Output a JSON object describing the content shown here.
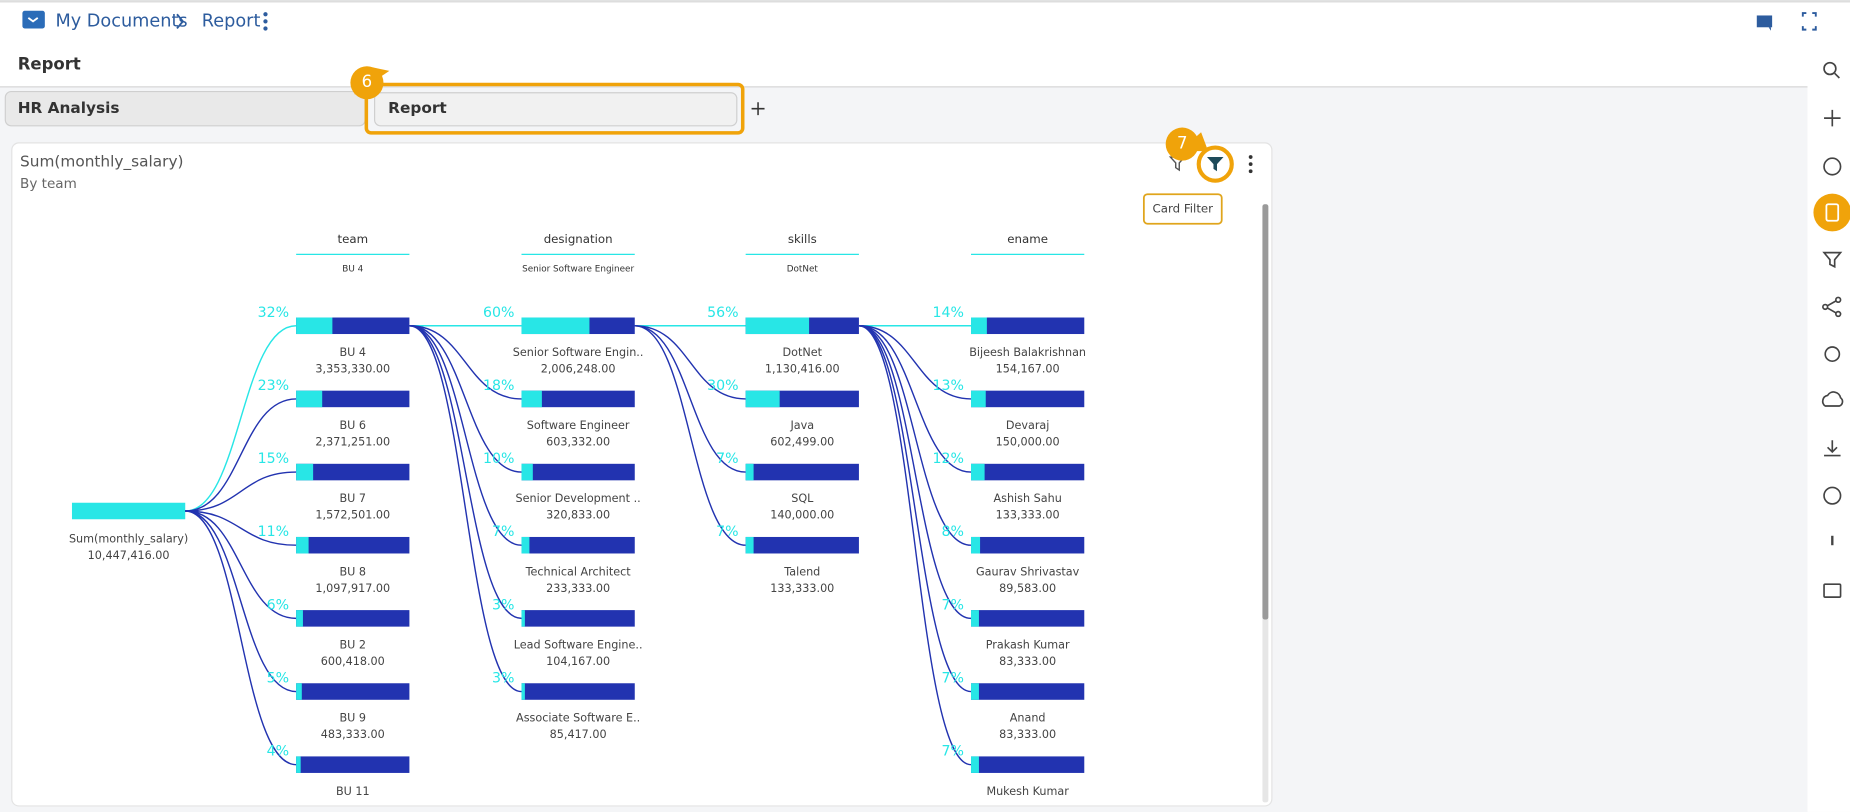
{
  "header": {
    "breadcrumb": [
      "My Documents",
      "Report"
    ]
  },
  "page_title": "Report",
  "tabs": [
    "HR Analysis",
    "Report"
  ],
  "step_badges": [
    "6",
    "7"
  ],
  "card": {
    "title": "Sum(monthly_salary)",
    "subtitle": "By team",
    "tooltip": "Card Filter"
  },
  "tree": {
    "root": {
      "label": "Sum(monthly_salary)",
      "value": "10,447,416.00"
    },
    "levels": [
      {
        "field": "team",
        "selected": "BU 4",
        "nodes": [
          {
            "label": "BU 4",
            "value": "3,353,330.00",
            "share": {
              "value": 32,
              "label": "32%"
            }
          },
          {
            "label": "BU 6",
            "value": "2,371,251.00",
            "share": {
              "value": 23,
              "label": "23%"
            }
          },
          {
            "label": "BU 7",
            "value": "1,572,501.00",
            "share": {
              "value": 15,
              "label": "15%"
            }
          },
          {
            "label": "BU 8",
            "value": "1,097,917.00",
            "share": {
              "value": 11,
              "label": "11%"
            }
          },
          {
            "label": "BU 2",
            "value": "600,418.00",
            "share": {
              "value": 6,
              "label": "6%"
            }
          },
          {
            "label": "BU 9",
            "value": "483,333.00",
            "share": {
              "value": 5,
              "label": "5%"
            }
          },
          {
            "label": "BU 11",
            "share": {
              "value": 4,
              "label": "4%"
            }
          }
        ]
      },
      {
        "field": "designation",
        "selected": "Senior Software Engineer",
        "nodes": [
          {
            "label": "Senior Software Engin..",
            "value": "2,006,248.00",
            "share": {
              "value": 60,
              "label": "60%"
            }
          },
          {
            "label": "Software Engineer",
            "value": "603,332.00",
            "share": {
              "value": 18,
              "label": "18%"
            }
          },
          {
            "label": "Senior Development ..",
            "value": "320,833.00",
            "share": {
              "value": 10,
              "label": "10%"
            }
          },
          {
            "label": "Technical Architect",
            "value": "233,333.00",
            "share": {
              "value": 7,
              "label": "7%"
            }
          },
          {
            "label": "Lead Software Engine..",
            "value": "104,167.00",
            "share": {
              "value": 3,
              "label": "3%"
            }
          },
          {
            "label": "Associate Software E..",
            "value": "85,417.00",
            "share": {
              "value": 3,
              "label": "3%"
            }
          }
        ]
      },
      {
        "field": "skills",
        "selected": "DotNet",
        "nodes": [
          {
            "label": "DotNet",
            "value": "1,130,416.00",
            "share": {
              "value": 56,
              "label": "56%"
            }
          },
          {
            "label": "Java",
            "value": "602,499.00",
            "share": {
              "value": 30,
              "label": "30%"
            }
          },
          {
            "label": "SQL",
            "value": "140,000.00",
            "share": {
              "value": 7,
              "label": "7%"
            }
          },
          {
            "label": "Talend",
            "value": "133,333.00",
            "share": {
              "value": 7,
              "label": "7%"
            }
          }
        ]
      },
      {
        "field": "ename",
        "nodes": [
          {
            "label": "Bijeesh Balakrishnan",
            "value": "154,167.00",
            "share": {
              "value": 14,
              "label": "14%"
            }
          },
          {
            "label": "Devaraj",
            "value": "150,000.00",
            "share": {
              "value": 13,
              "label": "13%"
            }
          },
          {
            "label": "Ashish Sahu",
            "value": "133,333.00",
            "share": {
              "value": 12,
              "label": "12%"
            }
          },
          {
            "label": "Gaurav Shrivastav",
            "value": "89,583.00",
            "share": {
              "value": 8,
              "label": "8%"
            }
          },
          {
            "label": "Prakash Kumar",
            "value": "83,333.00",
            "share": {
              "value": 7,
              "label": "7%"
            }
          },
          {
            "label": "Anand",
            "value": "83,333.00",
            "share": {
              "value": 7,
              "label": "7%"
            }
          },
          {
            "label": "Mukesh Kumar",
            "share": {
              "value": 7,
              "label": "7%"
            }
          }
        ]
      }
    ]
  }
}
